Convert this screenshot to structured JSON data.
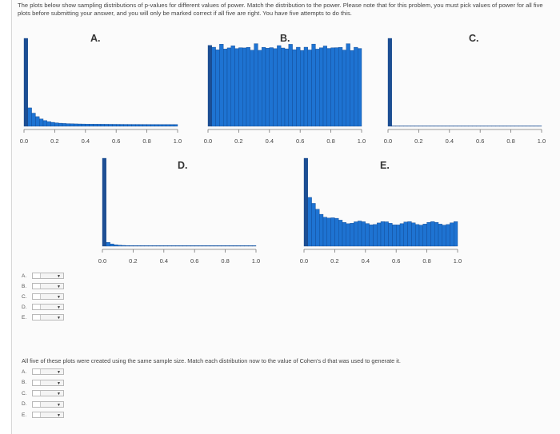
{
  "instructions": "The plots below show sampling distributions of p-values for different values of power. Match the distribution to the power. Please note that for this problem, you must pick values of power for all five plots before submitting your answer, and you will only be marked correct if all five are right. You have five attempts to do this.",
  "plots": [
    {
      "label": "A.",
      "shape": "decay",
      "ticks": [
        "0.0",
        "0.2",
        "0.4",
        "0.6",
        "0.8",
        "1.0"
      ]
    },
    {
      "label": "B.",
      "shape": "uniform",
      "ticks": [
        "0.0",
        "0.2",
        "0.4",
        "0.6",
        "0.8",
        "1.0"
      ]
    },
    {
      "label": "C.",
      "shape": "spike",
      "ticks": [
        "0.0",
        "0.2",
        "0.4",
        "0.6",
        "0.8",
        "1.0"
      ]
    },
    {
      "label": "D.",
      "shape": "strong-decay",
      "ticks": [
        "0.0",
        "0.2",
        "0.4",
        "0.6",
        "0.8",
        "1.0"
      ]
    },
    {
      "label": "E.",
      "shape": "mild-decay",
      "ticks": [
        "0.0",
        "0.2",
        "0.4",
        "0.6",
        "0.8",
        "1.0"
      ]
    }
  ],
  "colors": {
    "bar": "#1e73d2",
    "bar_edge": "#0c3f86",
    "first_bar": "#1d4f94"
  },
  "power_dropdowns": [
    {
      "letter": "A.",
      "selected": ""
    },
    {
      "letter": "B.",
      "selected": ""
    },
    {
      "letter": "C.",
      "selected": ""
    },
    {
      "letter": "D.",
      "selected": ""
    },
    {
      "letter": "E.",
      "selected": ""
    }
  ],
  "question2": "All five of these plots were created using the same sample size. Match each distribution now to the value of Cohen's d that was used to generate it.",
  "cohen_dropdowns": [
    {
      "letter": "A.",
      "selected": ""
    },
    {
      "letter": "B.",
      "selected": ""
    },
    {
      "letter": "C.",
      "selected": ""
    },
    {
      "letter": "D.",
      "selected": ""
    },
    {
      "letter": "E.",
      "selected": ""
    }
  ]
}
